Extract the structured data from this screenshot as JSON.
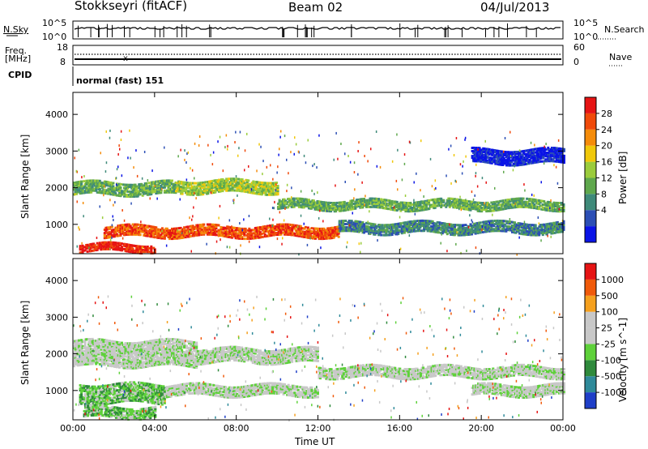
{
  "header": {
    "station": "Stokkseyri (fitACF)",
    "beam": "Beam 02",
    "date": "04/Jul/2013"
  },
  "strip_labels": {
    "nsky": "N.Sky",
    "nsearch": "N.Search",
    "freq_line1": "Freq.",
    "freq_line2": "[MHz]",
    "nave": "Nave",
    "cpid": "CPID",
    "cpid_value": "normal (fast) 151"
  },
  "strip_ticks": {
    "noise_left": [
      "10^5",
      "10^0"
    ],
    "noise_right": [
      "10^5",
      "10^0"
    ],
    "freq_left": [
      "18",
      "8"
    ],
    "nave_right": [
      "60",
      "0"
    ]
  },
  "chart_data": [
    {
      "type": "heatmap",
      "name": "power",
      "ylabel": "Slant Range [km]",
      "xlabel": "",
      "yticks": [
        1000,
        2000,
        3000,
        4000
      ],
      "ylim": [
        200,
        4600
      ],
      "xlim": [
        0,
        24
      ],
      "colorbar": {
        "label": "Power [dB]",
        "ticks": [
          "28",
          "24",
          "20",
          "16",
          "12",
          "8",
          "4"
        ],
        "colors": [
          "#0a14e6",
          "#2c4fb5",
          "#3f8a7a",
          "#5fa84d",
          "#9bcc3c",
          "#f0c80a",
          "#f58c0a",
          "#f04a0a",
          "#e61414"
        ]
      },
      "bands": [
        {
          "t0": 0.0,
          "t1": 5.0,
          "r0": 1850,
          "r1": 2200,
          "level": 3
        },
        {
          "t0": 5.0,
          "t1": 10.0,
          "r0": 1900,
          "r1": 2250,
          "level": 4
        },
        {
          "t0": 10.0,
          "t1": 24.0,
          "r0": 1450,
          "r1": 1700,
          "level": 3
        },
        {
          "t0": 1.5,
          "t1": 13.0,
          "r0": 700,
          "r1": 1000,
          "level": 7
        },
        {
          "t0": 13.0,
          "t1": 24.0,
          "r0": 800,
          "r1": 1100,
          "level": 2
        },
        {
          "t0": 0.3,
          "t1": 4.0,
          "r0": 300,
          "r1": 500,
          "level": 8
        },
        {
          "t0": 19.5,
          "t1": 24.0,
          "r0": 2700,
          "r1": 3100,
          "level": 0
        }
      ]
    },
    {
      "type": "heatmap",
      "name": "velocity",
      "ylabel": "Slant Range [km]",
      "xlabel": "Time UT",
      "xticks": [
        "00:00",
        "04:00",
        "08:00",
        "12:00",
        "16:00",
        "20:00",
        "00:00"
      ],
      "yticks": [
        1000,
        2000,
        3000,
        4000
      ],
      "ylim": [
        200,
        4600
      ],
      "xlim": [
        0,
        24
      ],
      "colorbar": {
        "label": "Velocity [m s^-1]",
        "ticks": [
          "1000",
          "500",
          "100",
          "25",
          "-25",
          "-100",
          "-500",
          "-1000"
        ],
        "colors": [
          "#1f3fc8",
          "#2f8a9a",
          "#2f8a3c",
          "#5ed13a",
          "#c8c8c8",
          "#c8c8c8",
          "#f5a01e",
          "#f05a0a",
          "#e61414"
        ]
      },
      "bands": [
        {
          "t0": 0.0,
          "t1": 6.0,
          "r0": 1700,
          "r1": 2400,
          "level": 4
        },
        {
          "t0": 6.0,
          "t1": 12.0,
          "r0": 1800,
          "r1": 2200,
          "level": 4
        },
        {
          "t0": 12.0,
          "t1": 24.0,
          "r0": 1400,
          "r1": 1700,
          "level": 4
        },
        {
          "t0": 0.3,
          "t1": 4.5,
          "r0": 700,
          "r1": 1200,
          "level": 3
        },
        {
          "t0": 4.5,
          "t1": 12.0,
          "r0": 900,
          "r1": 1200,
          "level": 4
        },
        {
          "t0": 19.5,
          "t1": 24.0,
          "r0": 900,
          "r1": 1200,
          "level": 4
        },
        {
          "t0": 0.5,
          "t1": 4.0,
          "r0": 300,
          "r1": 600,
          "level": 3
        }
      ]
    }
  ]
}
